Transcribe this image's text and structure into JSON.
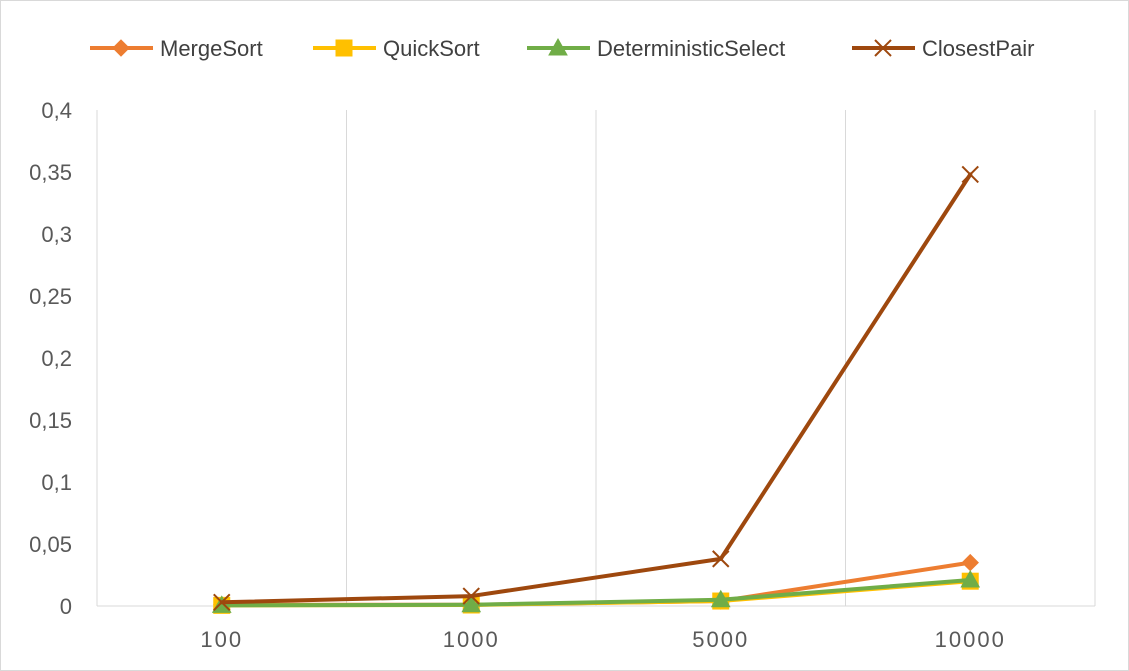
{
  "chart_data": {
    "type": "line",
    "title": "",
    "xlabel": "",
    "ylabel": "",
    "categories": [
      "100",
      "1000",
      "5000",
      "10000"
    ],
    "ylim": [
      0,
      0.4
    ],
    "yticks": [
      0,
      0.05,
      0.1,
      0.15,
      0.2,
      0.25,
      0.3,
      0.35,
      0.4
    ],
    "ytick_labels": [
      "0",
      "0,05",
      "0,1",
      "0,15",
      "0,2",
      "0,25",
      "0,3",
      "0,35",
      "0,4"
    ],
    "grid": {
      "vertical": true,
      "horizontal": false
    },
    "legend_position": "top",
    "series": [
      {
        "name": "MergeSort",
        "values": [
          0.001,
          0.001,
          0.004,
          0.035
        ],
        "color": "#ED7D31",
        "marker": "diamond"
      },
      {
        "name": "QuickSort",
        "values": [
          0.0005,
          0.0008,
          0.004,
          0.02
        ],
        "color": "#FFC000",
        "marker": "square"
      },
      {
        "name": "DeterministicSelect",
        "values": [
          0.0005,
          0.001,
          0.005,
          0.021
        ],
        "color": "#70AD47",
        "marker": "triangle"
      },
      {
        "name": "ClosestPair",
        "values": [
          0.003,
          0.008,
          0.038,
          0.348
        ],
        "color": "#9E480E",
        "marker": "x"
      }
    ]
  }
}
